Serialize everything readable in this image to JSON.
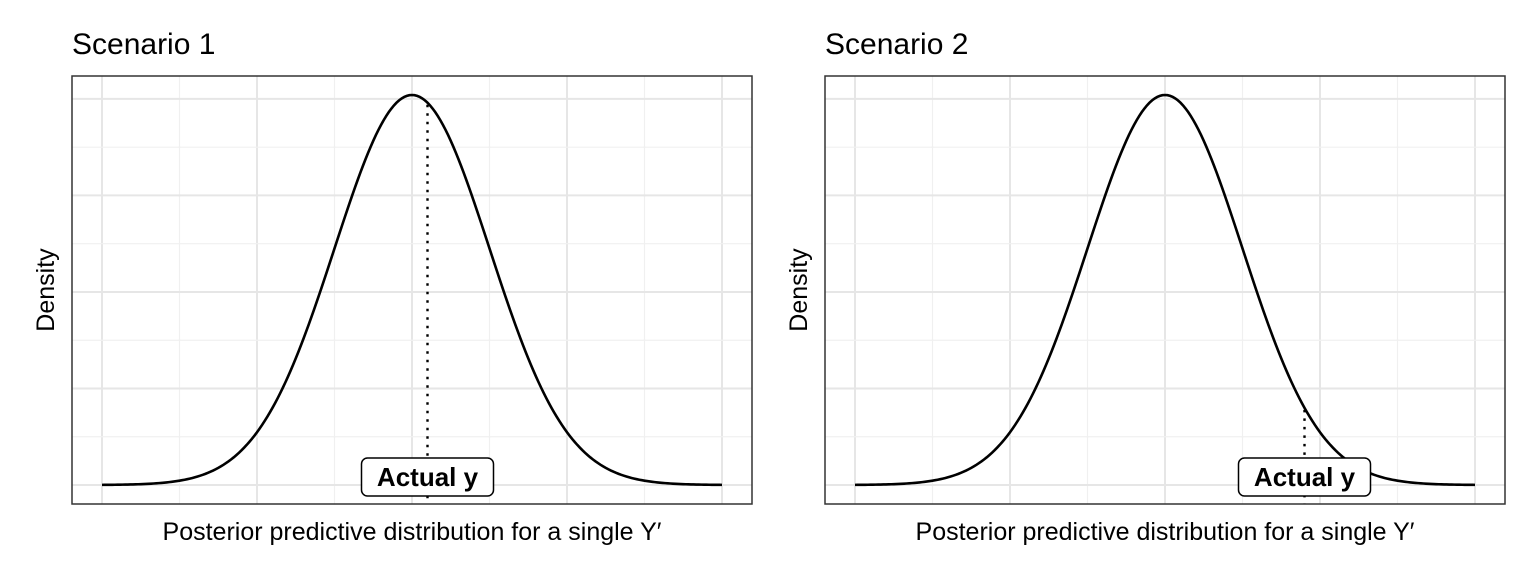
{
  "chart_data": [
    {
      "type": "line",
      "title": "Scenario 1",
      "xlabel": "Posterior predictive distribution for a single Y′",
      "ylabel": "Density",
      "distribution": "normal",
      "mean": 0,
      "sd": 1,
      "xlim": [
        -4,
        4
      ],
      "actual_y": 0.2,
      "annotation": "Actual y",
      "grid": true
    },
    {
      "type": "line",
      "title": "Scenario 2",
      "xlabel": "Posterior predictive distribution for a single Y′",
      "ylabel": "Density",
      "distribution": "normal",
      "mean": 0,
      "sd": 1,
      "xlim": [
        -4,
        4
      ],
      "actual_y": 1.8,
      "annotation": "Actual y",
      "grid": true
    }
  ]
}
